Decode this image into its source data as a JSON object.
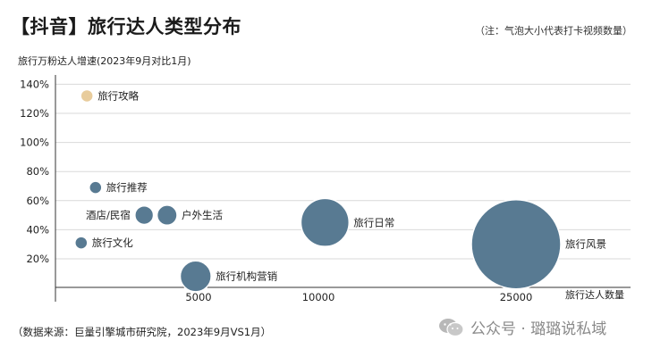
{
  "title": "【抖音】旅行达人类型分布",
  "note": "（注：气泡大小代表打卡视频数量）",
  "source": "（数据来源：巨量引擎城市研究院，2023年9月VS1月）",
  "watermark": {
    "text": "公众号 · 璐璐说私域",
    "icon": "wechat-icon"
  },
  "chart_data": {
    "type": "scatter",
    "ylabel": "旅行万粉达人增速(2023年9月对比1月)",
    "xlabel": "旅行达人数量",
    "y_ticks": [
      {
        "value": 20,
        "label": "20%"
      },
      {
        "value": 40,
        "label": "40%"
      },
      {
        "value": 60,
        "label": "60%"
      },
      {
        "value": 80,
        "label": "80%"
      },
      {
        "value": 100,
        "label": "100%"
      },
      {
        "value": 120,
        "label": "120%"
      },
      {
        "value": 140,
        "label": "140%"
      }
    ],
    "x_ticks": [
      {
        "value": 5000,
        "label": "5000"
      },
      {
        "value": 10000,
        "label": "10000"
      },
      {
        "value": 25000,
        "label": "25000"
      }
    ],
    "grid": true,
    "points": [
      {
        "label": "旅行攻略",
        "x": 1100,
        "y": 132,
        "size": 1.0,
        "color": "#e8cc9c"
      },
      {
        "label": "旅行推荐",
        "x": 1400,
        "y": 69,
        "size": 1.8,
        "color": "#587a92"
      },
      {
        "label": "酒店/民宿",
        "x": 3100,
        "y": 50,
        "size": 4.3,
        "color": "#587a92"
      },
      {
        "label": "户外生活",
        "x": 3900,
        "y": 50,
        "size": 5.0,
        "color": "#587a92"
      },
      {
        "label": "旅行文化",
        "x": 900,
        "y": 31,
        "size": 0.8,
        "color": "#587a92"
      },
      {
        "label": "旅行机构营销",
        "x": 4900,
        "y": 8,
        "size": 12,
        "color": "#587a92"
      },
      {
        "label": "旅行日常",
        "x": 10500,
        "y": 45,
        "size": 29,
        "color": "#587a92"
      },
      {
        "label": "旅行风景",
        "x": 25000,
        "y": 30,
        "size": 100,
        "color": "#587a92"
      }
    ]
  }
}
